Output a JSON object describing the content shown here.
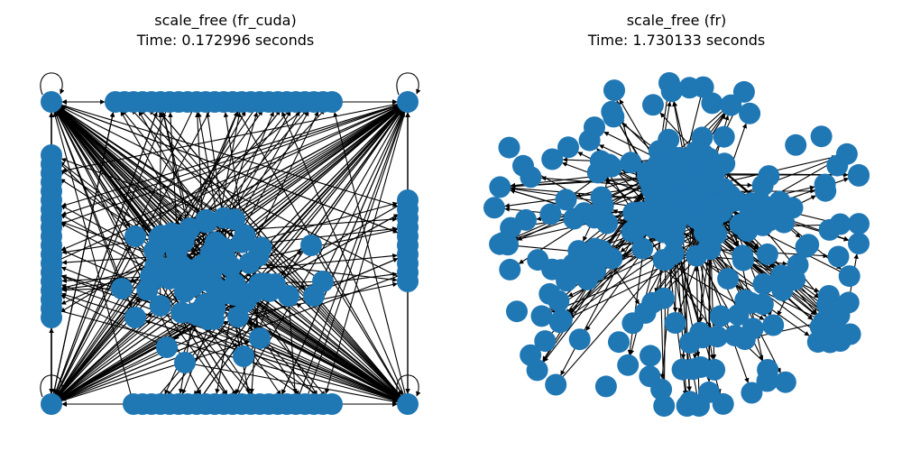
{
  "colors": {
    "node": "#1f77b4",
    "edge": "#000000",
    "background": "#ffffff"
  },
  "panels": [
    {
      "title": "scale_free (fr_cuda)",
      "subtitle": "Time: 0.172996 seconds"
    },
    {
      "title": "scale_free (fr)",
      "subtitle": "Time: 1.730133 seconds"
    }
  ]
}
